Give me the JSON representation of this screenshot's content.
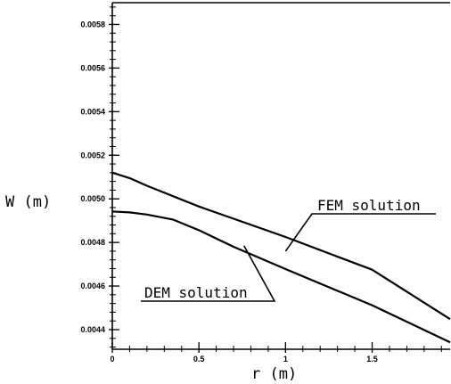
{
  "chart_data": {
    "type": "line",
    "xlabel": "r (m)",
    "ylabel": "W (m)",
    "xlim": [
      0,
      1.95
    ],
    "ylim": [
      0.00431,
      0.0059
    ],
    "x_ticks": [
      0,
      0.5,
      1,
      1.5
    ],
    "x_tick_labels": [
      "0",
      "0.5",
      "1",
      "1.5"
    ],
    "y_ticks": [
      0.0044,
      0.0046,
      0.0048,
      0.005,
      0.0052,
      0.0054,
      0.0056,
      0.0058
    ],
    "y_tick_labels": [
      "0.0044",
      "0.0046",
      "0.0048",
      "0.0050",
      "0.0052",
      "0.0054",
      "0.0056",
      "0.0058"
    ],
    "grid": false,
    "series": [
      {
        "name": "FEM solution",
        "x": [
          0,
          0.1,
          0.2,
          0.5,
          1.0,
          1.5,
          1.95
        ],
        "y": [
          0.00512,
          0.005095,
          0.00506,
          0.004965,
          0.004825,
          0.004675,
          0.004448
        ]
      },
      {
        "name": "DEM solution",
        "x": [
          0,
          0.1,
          0.2,
          0.35,
          0.5,
          0.7,
          1.0,
          1.5,
          1.95
        ],
        "y": [
          0.004942,
          0.004938,
          0.004928,
          0.004905,
          0.004856,
          0.00478,
          0.004678,
          0.004512,
          0.004342
        ]
      }
    ],
    "annotations": [
      {
        "series": 0,
        "text": "FEM solution",
        "anchor_x": 1.0,
        "anchor_y": 0.00476
      },
      {
        "series": 1,
        "text": "DEM solution",
        "anchor_x": 0.76,
        "anchor_y": 0.004785
      }
    ]
  }
}
